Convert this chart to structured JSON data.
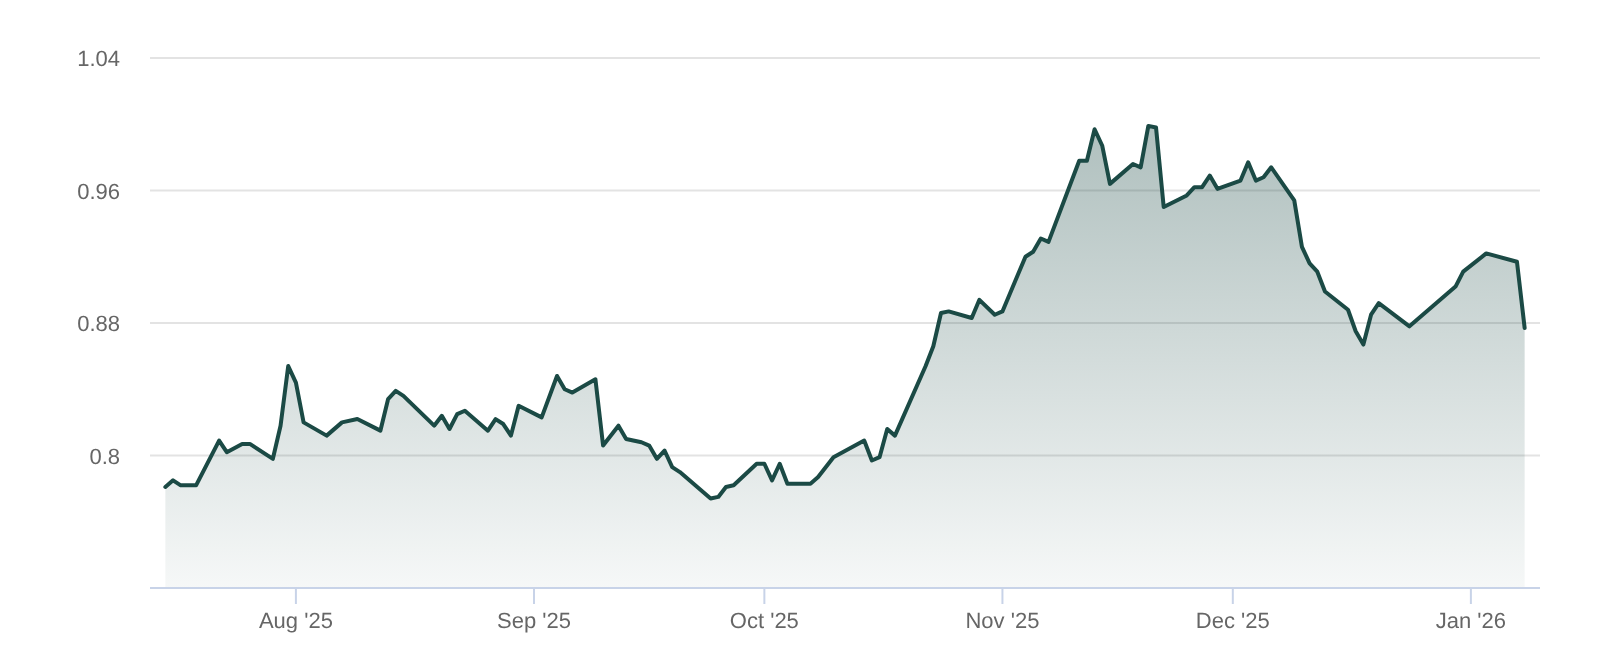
{
  "chart_data": {
    "type": "area",
    "xlim": [
      "2025-07-13",
      "2026-01-10"
    ],
    "ylim": [
      0.72,
      1.04
    ],
    "yticks": [
      0.8,
      0.88,
      0.96,
      1.04
    ],
    "grid": "y",
    "color": "#1b4a45",
    "xticks": [
      {
        "value": "2025-08-01",
        "label": "Aug '25"
      },
      {
        "value": "2025-09-01",
        "label": "Sep '25"
      },
      {
        "value": "2025-10-01",
        "label": "Oct '25"
      },
      {
        "value": "2025-11-01",
        "label": "Nov '25"
      },
      {
        "value": "2025-12-01",
        "label": "Dec '25"
      },
      {
        "value": "2026-01-01",
        "label": "Jan '26"
      }
    ],
    "x": [
      "2025-07-15",
      "2025-07-16",
      "2025-07-17",
      "2025-07-19",
      "2025-07-22",
      "2025-07-23",
      "2025-07-25",
      "2025-07-26",
      "2025-07-29",
      "2025-07-30",
      "2025-07-31",
      "2025-08-01",
      "2025-08-02",
      "2025-08-05",
      "2025-08-07",
      "2025-08-09",
      "2025-08-12",
      "2025-08-13",
      "2025-08-14",
      "2025-08-15",
      "2025-08-19",
      "2025-08-20",
      "2025-08-21",
      "2025-08-22",
      "2025-08-23",
      "2025-08-26",
      "2025-08-27",
      "2025-08-28",
      "2025-08-29",
      "2025-08-30",
      "2025-09-02",
      "2025-09-04",
      "2025-09-05",
      "2025-09-06",
      "2025-09-09",
      "2025-09-10",
      "2025-09-12",
      "2025-09-13",
      "2025-09-15",
      "2025-09-16",
      "2025-09-17",
      "2025-09-18",
      "2025-09-19",
      "2025-09-20",
      "2025-09-24",
      "2025-09-25",
      "2025-09-26",
      "2025-09-27",
      "2025-09-30",
      "2025-10-01",
      "2025-10-02",
      "2025-10-03",
      "2025-10-04",
      "2025-10-07",
      "2025-10-08",
      "2025-10-10",
      "2025-10-14",
      "2025-10-15",
      "2025-10-16",
      "2025-10-17",
      "2025-10-18",
      "2025-10-22",
      "2025-10-23",
      "2025-10-24",
      "2025-10-25",
      "2025-10-28",
      "2025-10-29",
      "2025-10-31",
      "2025-11-01",
      "2025-11-04",
      "2025-11-05",
      "2025-11-06",
      "2025-11-07",
      "2025-11-11",
      "2025-11-12",
      "2025-11-13",
      "2025-11-14",
      "2025-11-15",
      "2025-11-18",
      "2025-11-19",
      "2025-11-20",
      "2025-11-21",
      "2025-11-22",
      "2025-11-25",
      "2025-11-26",
      "2025-11-27",
      "2025-11-28",
      "2025-11-29",
      "2025-12-02",
      "2025-12-03",
      "2025-12-04",
      "2025-12-05",
      "2025-12-06",
      "2025-12-09",
      "2025-12-10",
      "2025-12-11",
      "2025-12-12",
      "2025-12-13",
      "2025-12-16",
      "2025-12-17",
      "2025-12-18",
      "2025-12-19",
      "2025-12-20",
      "2025-12-24",
      "2025-12-30",
      "2025-12-31",
      "2026-01-03",
      "2026-01-07",
      "2026-01-08"
    ],
    "values": [
      0.781,
      0.785,
      0.782,
      0.782,
      0.809,
      0.802,
      0.807,
      0.807,
      0.798,
      0.818,
      0.854,
      0.844,
      0.82,
      0.812,
      0.82,
      0.822,
      0.815,
      0.834,
      0.839,
      0.836,
      0.818,
      0.824,
      0.816,
      0.825,
      0.827,
      0.815,
      0.822,
      0.819,
      0.812,
      0.83,
      0.823,
      0.848,
      0.84,
      0.838,
      0.846,
      0.806,
      0.818,
      0.81,
      0.808,
      0.806,
      0.798,
      0.803,
      0.793,
      0.79,
      0.774,
      0.775,
      0.781,
      0.782,
      0.795,
      0.795,
      0.785,
      0.795,
      0.783,
      0.783,
      0.787,
      0.799,
      0.809,
      0.797,
      0.799,
      0.816,
      0.812,
      0.854,
      0.866,
      0.886,
      0.887,
      0.883,
      0.894,
      0.885,
      0.887,
      0.92,
      0.923,
      0.931,
      0.929,
      0.978,
      0.978,
      0.997,
      0.987,
      0.964,
      0.976,
      0.974,
      0.999,
      0.998,
      0.95,
      0.957,
      0.962,
      0.962,
      0.969,
      0.961,
      0.966,
      0.977,
      0.966,
      0.968,
      0.974,
      0.954,
      0.926,
      0.916,
      0.911,
      0.899,
      0.888,
      0.875,
      0.867,
      0.885,
      0.892,
      0.878,
      0.902,
      0.911,
      0.922,
      0.917,
      0.877
    ]
  }
}
